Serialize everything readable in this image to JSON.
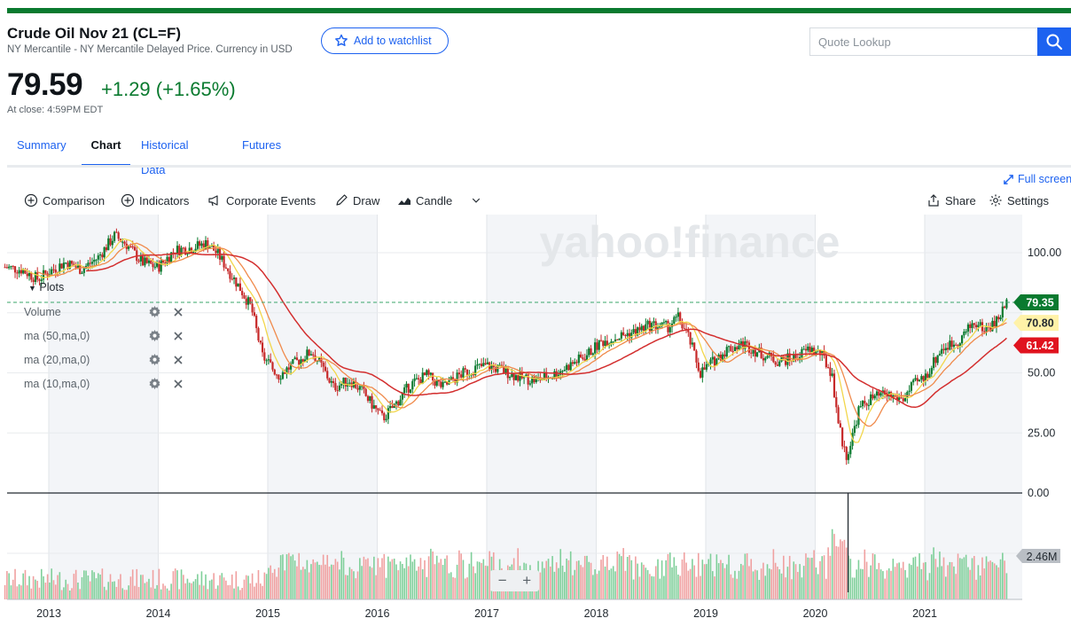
{
  "header": {
    "title": "Crude Oil Nov 21 (CL=F)",
    "subtitle": "NY Mercantile - NY Mercantile Delayed Price. Currency in USD",
    "watchlist_label": "Add to watchlist"
  },
  "search": {
    "placeholder": "Quote Lookup"
  },
  "quote": {
    "price": "79.59",
    "change": "+1.29 (+1.65%)",
    "close_time": "At close: 4:59PM EDT"
  },
  "tabs": [
    {
      "label": "Summary"
    },
    {
      "label": "Chart"
    },
    {
      "label": "Historical Data"
    },
    {
      "label": "Futures"
    }
  ],
  "toolbar": {
    "comparison": "Comparison",
    "indicators": "Indicators",
    "events": "Corporate Events",
    "draw": "Draw",
    "candle": "Candle",
    "share": "Share",
    "settings": "Settings",
    "fullscreen": "Full screen"
  },
  "studies": {
    "plots": "Plots",
    "items": [
      "Volume",
      "ma (50,ma,0)",
      "ma (20,ma,0)",
      "ma (10,ma,0)"
    ]
  },
  "zoom": {
    "minus": "−",
    "plus": "+"
  },
  "colors": {
    "accent": "#1d62f0",
    "up": "#0a7a2f",
    "down": "#c62828",
    "ma50": "#d32f2f",
    "ma20": "#f08a4b",
    "ma10": "#f2d64b"
  },
  "chart_data": {
    "type": "candle",
    "title": "",
    "watermark": "yahoo!finance",
    "x_ticks": [
      "2013",
      "2014",
      "2015",
      "2016",
      "2017",
      "2018",
      "2019",
      "2020",
      "2021"
    ],
    "y_ticks": [
      "100.00",
      "50.00",
      "25.00",
      "0.00"
    ],
    "ylim": [
      0,
      110
    ],
    "volume_label": "2.46M",
    "price_labels": {
      "last": "79.35",
      "ma20": "70.80",
      "ma50": "61.42"
    },
    "grid": true,
    "x": [
      2012.6,
      2012.75,
      2012.9,
      2013.0,
      2013.15,
      2013.3,
      2013.45,
      2013.6,
      2013.7,
      2013.85,
      2014.0,
      2014.15,
      2014.3,
      2014.45,
      2014.55,
      2014.65,
      2014.75,
      2014.85,
      2014.95,
      2015.1,
      2015.25,
      2015.4,
      2015.5,
      2015.6,
      2015.75,
      2015.85,
      2015.95,
      2016.05,
      2016.15,
      2016.3,
      2016.45,
      2016.6,
      2016.75,
      2016.9,
      2017.0,
      2017.15,
      2017.3,
      2017.45,
      2017.6,
      2017.75,
      2017.9,
      2018.05,
      2018.2,
      2018.35,
      2018.5,
      2018.65,
      2018.75,
      2018.85,
      2018.95,
      2019.05,
      2019.2,
      2019.35,
      2019.5,
      2019.65,
      2019.8,
      2019.95,
      2020.05,
      2020.15,
      2020.22,
      2020.28,
      2020.32,
      2020.4,
      2020.5,
      2020.65,
      2020.8,
      2020.9,
      2021.0,
      2021.15,
      2021.3,
      2021.45,
      2021.55,
      2021.65,
      2021.75
    ],
    "close": [
      94,
      93,
      89,
      92,
      96,
      93,
      98,
      107,
      104,
      96,
      94,
      101,
      102,
      104,
      99,
      92,
      85,
      77,
      57,
      49,
      54,
      59,
      52,
      44,
      47,
      43,
      37,
      31,
      36,
      45,
      49,
      44,
      49,
      52,
      53,
      51,
      48,
      47,
      49,
      53,
      57,
      63,
      65,
      67,
      70,
      69,
      73,
      64,
      50,
      54,
      60,
      62,
      58,
      55,
      56,
      60,
      58,
      50,
      27,
      15,
      20,
      35,
      39,
      41,
      39,
      45,
      48,
      60,
      63,
      71,
      68,
      71,
      79
    ]
  }
}
